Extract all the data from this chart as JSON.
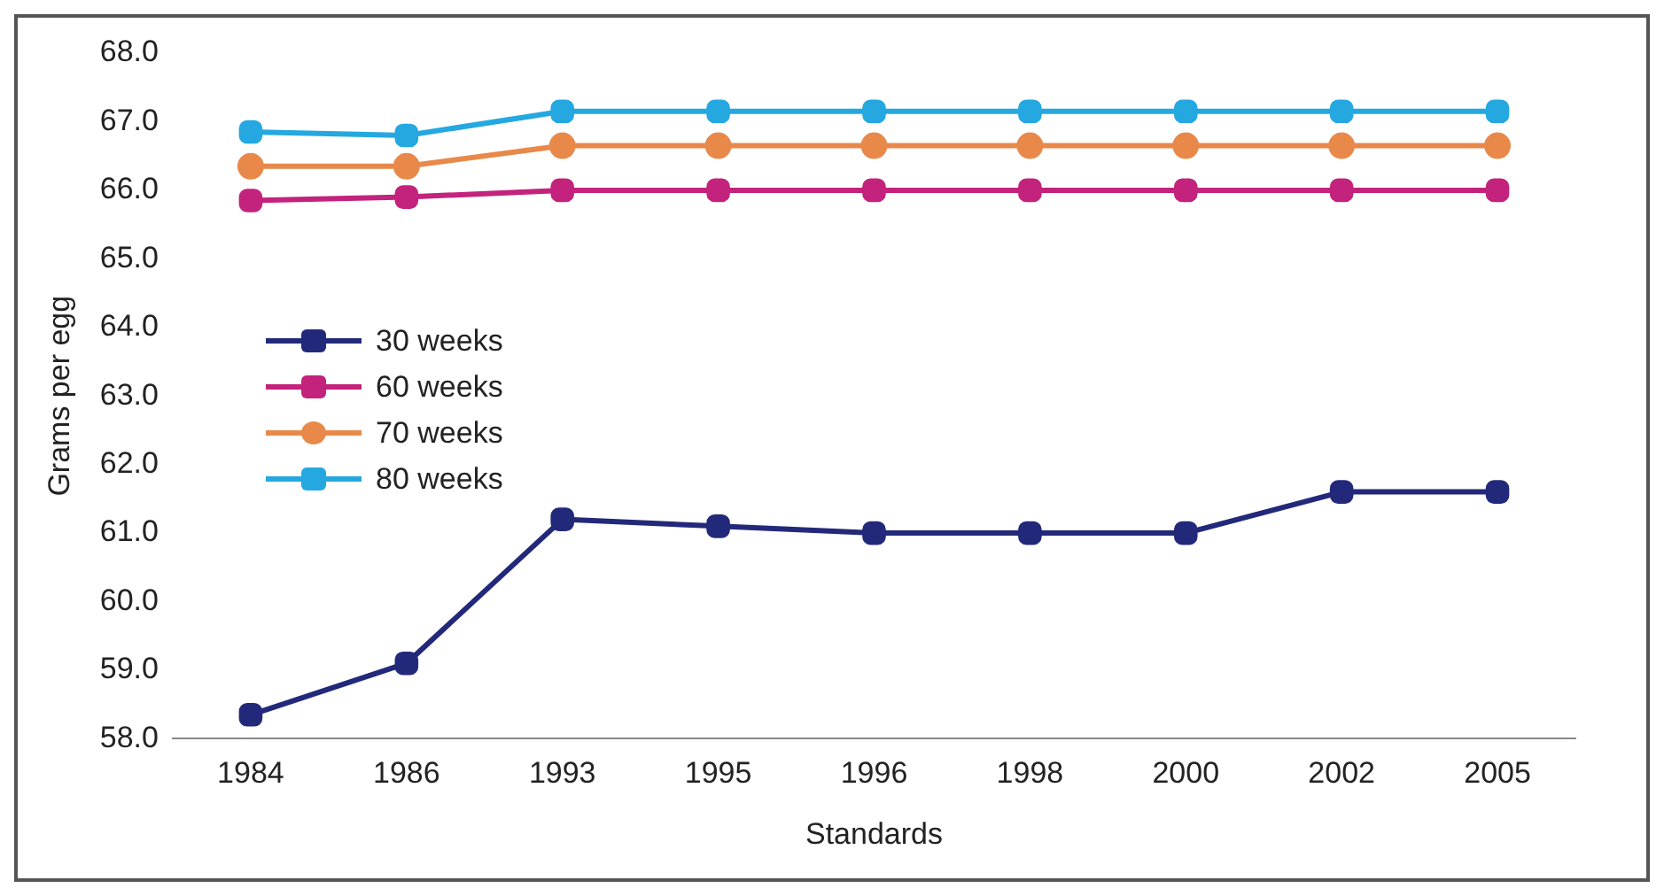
{
  "chart_data": {
    "type": "line",
    "xlabel": "Standards",
    "ylabel": "Grams per egg",
    "categories": [
      "1984",
      "1986",
      "1993",
      "1995",
      "1996",
      "1998",
      "2000",
      "2002",
      "2005"
    ],
    "series": [
      {
        "name": "30 weeks",
        "color": "#23297a",
        "marker": "square",
        "values": [
          58.35,
          59.1,
          61.2,
          61.1,
          61.0,
          61.0,
          61.0,
          61.6,
          61.6
        ]
      },
      {
        "name": "60 weeks",
        "color": "#c3237c",
        "marker": "square",
        "values": [
          65.85,
          65.9,
          66.0,
          66.0,
          66.0,
          66.0,
          66.0,
          66.0,
          66.0
        ]
      },
      {
        "name": "70 weeks",
        "color": "#e8894a",
        "marker": "circle",
        "values": [
          66.35,
          66.35,
          66.65,
          66.65,
          66.65,
          66.65,
          66.65,
          66.65,
          66.65
        ]
      },
      {
        "name": "80 weeks",
        "color": "#25a8e0",
        "marker": "square",
        "values": [
          66.85,
          66.8,
          67.15,
          67.15,
          67.15,
          67.15,
          67.15,
          67.15,
          67.15
        ]
      }
    ],
    "ylim": [
      58,
      68
    ],
    "yticks": [
      {
        "value": 58,
        "label": "58.0"
      },
      {
        "value": 59,
        "label": "59.0"
      },
      {
        "value": 60,
        "label": "60.0"
      },
      {
        "value": 61,
        "label": "61.0"
      },
      {
        "value": 62,
        "label": "62.0"
      },
      {
        "value": 63,
        "label": "63.0"
      },
      {
        "value": 64,
        "label": "64.0"
      },
      {
        "value": 65,
        "label": "65.0"
      },
      {
        "value": 66,
        "label": "66.0"
      },
      {
        "value": 67,
        "label": "67.0"
      },
      {
        "value": 68,
        "label": "68.0"
      }
    ],
    "grid": false,
    "legend": "left",
    "line_style": "solid"
  }
}
